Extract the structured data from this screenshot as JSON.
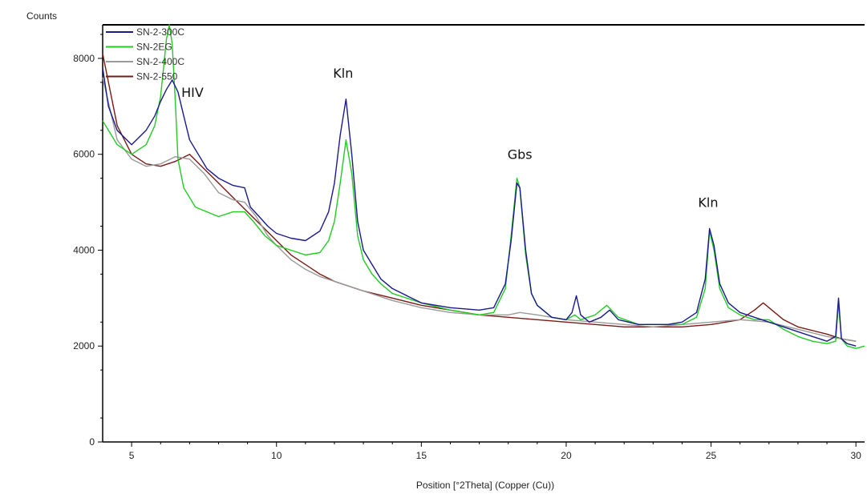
{
  "chart_data": {
    "type": "line",
    "title": "",
    "ylabel": "Counts",
    "xlabel": "Position [°2Theta] (Copper (Cu))",
    "xlim": [
      4,
      30.3
    ],
    "ylim": [
      0,
      8700
    ],
    "x_ticks": [
      5,
      10,
      15,
      20,
      25,
      30
    ],
    "y_ticks": [
      0,
      2000,
      4000,
      6000,
      8000
    ],
    "grid": false,
    "legend_position": "top-left",
    "series": [
      {
        "name": "SN-2-300C",
        "color": "#1a1a8c",
        "x": [
          4.0,
          4.2,
          4.5,
          5.0,
          5.5,
          5.8,
          6.0,
          6.2,
          6.4,
          6.6,
          6.8,
          7.0,
          7.3,
          7.6,
          8.0,
          8.5,
          8.9,
          9.1,
          9.4,
          9.7,
          10.0,
          10.5,
          11.0,
          11.5,
          11.8,
          12.0,
          12.2,
          12.4,
          12.6,
          12.8,
          13.0,
          13.3,
          13.6,
          14.0,
          15.0,
          16.0,
          17.0,
          17.5,
          17.9,
          18.1,
          18.3,
          18.4,
          18.6,
          18.8,
          19.0,
          19.5,
          20.0,
          20.2,
          20.35,
          20.5,
          20.8,
          21.2,
          21.5,
          21.8,
          22.5,
          23.5,
          24.0,
          24.5,
          24.8,
          24.95,
          25.1,
          25.3,
          25.6,
          26.0,
          26.5,
          27.0,
          27.5,
          28.0,
          28.5,
          29.0,
          29.3,
          29.4,
          29.5,
          29.7,
          30.0
        ],
        "y": [
          7800,
          7000,
          6500,
          6200,
          6500,
          6800,
          7100,
          7350,
          7550,
          7300,
          6800,
          6300,
          6000,
          5700,
          5500,
          5350,
          5300,
          4900,
          4700,
          4500,
          4350,
          4250,
          4200,
          4400,
          4800,
          5400,
          6400,
          7150,
          6000,
          4600,
          4000,
          3700,
          3400,
          3200,
          2900,
          2800,
          2750,
          2800,
          3300,
          4200,
          5400,
          5300,
          4000,
          3100,
          2850,
          2600,
          2550,
          2700,
          3050,
          2650,
          2500,
          2600,
          2750,
          2550,
          2450,
          2450,
          2500,
          2700,
          3400,
          4450,
          4100,
          3300,
          2900,
          2700,
          2600,
          2500,
          2400,
          2300,
          2200,
          2100,
          2200,
          3000,
          2150,
          2050,
          2000
        ]
      },
      {
        "name": "SN-2EG",
        "color": "#22cc22",
        "x": [
          4.0,
          4.5,
          5.0,
          5.5,
          5.8,
          6.0,
          6.1,
          6.2,
          6.3,
          6.4,
          6.5,
          6.6,
          6.8,
          7.2,
          7.6,
          8.0,
          8.5,
          8.9,
          9.2,
          9.6,
          10.0,
          10.5,
          11.0,
          11.5,
          11.8,
          12.0,
          12.2,
          12.4,
          12.6,
          12.8,
          13.0,
          13.3,
          13.6,
          14.0,
          15.0,
          16.0,
          17.0,
          17.5,
          17.9,
          18.1,
          18.3,
          18.4,
          18.6,
          18.8,
          19.0,
          19.5,
          20.0,
          20.3,
          20.5,
          21.0,
          21.4,
          21.8,
          22.5,
          23.5,
          24.0,
          24.5,
          24.8,
          24.95,
          25.1,
          25.3,
          25.6,
          26.0,
          26.5,
          27.0,
          27.5,
          28.0,
          28.5,
          29.0,
          29.3,
          29.4,
          29.5,
          29.7,
          30.0,
          30.3
        ],
        "y": [
          6700,
          6200,
          6000,
          6200,
          6600,
          7200,
          7800,
          8400,
          8700,
          8300,
          7200,
          5900,
          5300,
          4900,
          4800,
          4700,
          4800,
          4800,
          4600,
          4300,
          4100,
          4000,
          3900,
          3950,
          4200,
          4600,
          5400,
          6300,
          5600,
          4300,
          3800,
          3500,
          3300,
          3100,
          2900,
          2750,
          2650,
          2700,
          3200,
          4300,
          5500,
          5300,
          3900,
          3100,
          2850,
          2600,
          2550,
          2650,
          2550,
          2650,
          2850,
          2600,
          2450,
          2450,
          2450,
          2600,
          3200,
          4400,
          4000,
          3200,
          2800,
          2650,
          2550,
          2550,
          2350,
          2200,
          2100,
          2050,
          2100,
          2900,
          2150,
          2000,
          1950,
          2000
        ]
      },
      {
        "name": "SN-2-400C",
        "color": "#9a9a9a",
        "x": [
          4.0,
          4.5,
          5.0,
          5.5,
          6.0,
          6.5,
          7.0,
          7.5,
          8.0,
          8.5,
          8.9,
          9.3,
          9.7,
          10.0,
          10.5,
          11.0,
          11.5,
          12.0,
          12.5,
          13.0,
          14.0,
          15.0,
          16.0,
          17.0,
          18.0,
          18.4,
          19.0,
          20.0,
          21.0,
          22.0,
          23.0,
          24.0,
          25.0,
          26.0,
          27.0,
          28.0,
          29.0,
          30.0
        ],
        "y": [
          7600,
          6300,
          5900,
          5750,
          5800,
          5950,
          5900,
          5600,
          5200,
          5050,
          5000,
          4700,
          4300,
          4100,
          3800,
          3600,
          3450,
          3350,
          3250,
          3150,
          2950,
          2800,
          2700,
          2650,
          2650,
          2700,
          2650,
          2550,
          2500,
          2450,
          2400,
          2450,
          2500,
          2550,
          2500,
          2350,
          2200,
          2100
        ]
      },
      {
        "name": "SN-2-550",
        "color": "#7a1a14",
        "x": [
          4.0,
          4.5,
          5.0,
          5.5,
          6.0,
          6.5,
          7.0,
          7.5,
          8.0,
          8.5,
          9.0,
          9.5,
          10.0,
          10.5,
          11.0,
          11.5,
          12.0,
          12.5,
          13.0,
          14.0,
          15.0,
          16.0,
          17.0,
          18.0,
          19.0,
          20.0,
          21.0,
          22.0,
          23.0,
          24.0,
          25.0,
          26.0,
          26.5,
          26.8,
          27.0,
          27.5,
          28.0,
          29.0,
          29.5,
          30.0
        ],
        "y": [
          8100,
          6600,
          6000,
          5800,
          5750,
          5850,
          6000,
          5700,
          5400,
          5100,
          4800,
          4500,
          4200,
          3900,
          3700,
          3500,
          3350,
          3250,
          3150,
          3000,
          2850,
          2750,
          2650,
          2600,
          2550,
          2500,
          2450,
          2400,
          2400,
          2400,
          2450,
          2550,
          2750,
          2900,
          2800,
          2550,
          2400,
          2250,
          2150,
          2100
        ]
      }
    ],
    "annotations": [
      {
        "text": "HIV",
        "x": 7.1,
        "y": 7200
      },
      {
        "text": "Kln",
        "x": 12.3,
        "y": 7600
      },
      {
        "text": "Gbs",
        "x": 18.4,
        "y": 5900
      },
      {
        "text": "Kln",
        "x": 24.9,
        "y": 4900
      }
    ]
  }
}
